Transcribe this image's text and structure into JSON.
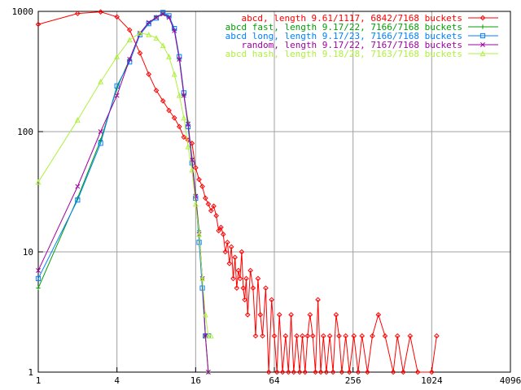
{
  "chart_data": {
    "type": "line",
    "title": "",
    "xlabel": "",
    "ylabel": "",
    "x_scale": "log2",
    "y_scale": "log10",
    "xlim": [
      1,
      4096
    ],
    "ylim": [
      1,
      1000
    ],
    "x_ticks": [
      "1",
      "4",
      "16",
      "64",
      "256",
      "1024",
      "4096"
    ],
    "y_ticks": [
      "1",
      "10",
      "100",
      "1000"
    ],
    "grid": true,
    "legend_position": "top-right",
    "series": [
      {
        "name": "abcd, length 9.61/1117, 6842/7168 buckets",
        "color": "#ff0000",
        "marker": "diamond",
        "points": [
          [
            1,
            780
          ],
          [
            2,
            960
          ],
          [
            3,
            990
          ],
          [
            4,
            900
          ],
          [
            5,
            700
          ],
          [
            6,
            450
          ],
          [
            7,
            300
          ],
          [
            8,
            220
          ],
          [
            9,
            180
          ],
          [
            10,
            150
          ],
          [
            11,
            130
          ],
          [
            12,
            110
          ],
          [
            13,
            90
          ],
          [
            14,
            85
          ],
          [
            15,
            80
          ],
          [
            16,
            50
          ],
          [
            17,
            40
          ],
          [
            18,
            35
          ],
          [
            19,
            28
          ],
          [
            20,
            25
          ],
          [
            21,
            22
          ],
          [
            22,
            24
          ],
          [
            23,
            20
          ],
          [
            24,
            15
          ],
          [
            25,
            16
          ],
          [
            26,
            14
          ],
          [
            27,
            10
          ],
          [
            28,
            12
          ],
          [
            29,
            8
          ],
          [
            30,
            11
          ],
          [
            31,
            6
          ],
          [
            32,
            9
          ],
          [
            33,
            5
          ],
          [
            34,
            7
          ],
          [
            35,
            6
          ],
          [
            36,
            10
          ],
          [
            37,
            5
          ],
          [
            38,
            4
          ],
          [
            39,
            6
          ],
          [
            40,
            3
          ],
          [
            42,
            7
          ],
          [
            44,
            5
          ],
          [
            46,
            2
          ],
          [
            48,
            6
          ],
          [
            50,
            3
          ],
          [
            52,
            2
          ],
          [
            55,
            5
          ],
          [
            58,
            1
          ],
          [
            61,
            4
          ],
          [
            64,
            2
          ],
          [
            67,
            1
          ],
          [
            70,
            3
          ],
          [
            74,
            1
          ],
          [
            78,
            2
          ],
          [
            82,
            1
          ],
          [
            86,
            3
          ],
          [
            90,
            1
          ],
          [
            95,
            2
          ],
          [
            100,
            1
          ],
          [
            105,
            2
          ],
          [
            110,
            1
          ],
          [
            115,
            2
          ],
          [
            120,
            3
          ],
          [
            126,
            2
          ],
          [
            132,
            1
          ],
          [
            138,
            4
          ],
          [
            145,
            1
          ],
          [
            152,
            2
          ],
          [
            160,
            1
          ],
          [
            170,
            2
          ],
          [
            180,
            1
          ],
          [
            190,
            3
          ],
          [
            200,
            2
          ],
          [
            210,
            1
          ],
          [
            225,
            2
          ],
          [
            240,
            1
          ],
          [
            260,
            2
          ],
          [
            280,
            1
          ],
          [
            300,
            2
          ],
          [
            330,
            1
          ],
          [
            360,
            2
          ],
          [
            400,
            3
          ],
          [
            450,
            2
          ],
          [
            520,
            1
          ],
          [
            560,
            2
          ],
          [
            620,
            1
          ],
          [
            700,
            2
          ],
          [
            800,
            1
          ],
          [
            1024,
            1
          ],
          [
            1117,
            2
          ]
        ]
      },
      {
        "name": "abcd fast, length 9.17/22, 7166/7168 buckets",
        "color": "#00a000",
        "marker": "plus",
        "points": [
          [
            1,
            5
          ],
          [
            2,
            28
          ],
          [
            3,
            85
          ],
          [
            4,
            230
          ],
          [
            5,
            400
          ],
          [
            6,
            650
          ],
          [
            7,
            800
          ],
          [
            8,
            900
          ],
          [
            9,
            960
          ],
          [
            10,
            900
          ],
          [
            11,
            700
          ],
          [
            12,
            400
          ],
          [
            13,
            200
          ],
          [
            14,
            120
          ],
          [
            15,
            60
          ],
          [
            16,
            30
          ],
          [
            17,
            15
          ],
          [
            18,
            6
          ],
          [
            19,
            2
          ],
          [
            20,
            1
          ]
        ]
      },
      {
        "name": "abcd long, length 9.17/23, 7166/7168 buckets",
        "color": "#0080ff",
        "marker": "square",
        "points": [
          [
            1,
            6
          ],
          [
            2,
            27
          ],
          [
            3,
            80
          ],
          [
            4,
            240
          ],
          [
            5,
            380
          ],
          [
            6,
            640
          ],
          [
            7,
            790
          ],
          [
            8,
            880
          ],
          [
            9,
            980
          ],
          [
            10,
            920
          ],
          [
            11,
            720
          ],
          [
            12,
            420
          ],
          [
            13,
            210
          ],
          [
            14,
            110
          ],
          [
            15,
            55
          ],
          [
            16,
            28
          ],
          [
            17,
            12
          ],
          [
            18,
            5
          ],
          [
            19,
            2
          ],
          [
            20,
            2
          ]
        ]
      },
      {
        "name": "random, length 9.17/22, 7167/7168 buckets",
        "color": "#a000a0",
        "marker": "x",
        "points": [
          [
            1,
            7
          ],
          [
            2,
            35
          ],
          [
            3,
            100
          ],
          [
            4,
            200
          ],
          [
            5,
            400
          ],
          [
            6,
            660
          ],
          [
            7,
            810
          ],
          [
            8,
            890
          ],
          [
            9,
            950
          ],
          [
            10,
            890
          ],
          [
            11,
            690
          ],
          [
            12,
            400
          ],
          [
            13,
            200
          ],
          [
            14,
            115
          ],
          [
            15,
            58
          ],
          [
            16,
            29
          ],
          [
            17,
            14
          ],
          [
            18,
            6
          ],
          [
            19,
            2
          ],
          [
            20,
            1
          ]
        ]
      },
      {
        "name": "abcd hash, length 9.18/28, 7163/7168 buckets",
        "color": "#b0f040",
        "marker": "triangle",
        "points": [
          [
            1,
            38
          ],
          [
            2,
            125
          ],
          [
            3,
            260
          ],
          [
            4,
            420
          ],
          [
            5,
            580
          ],
          [
            6,
            660
          ],
          [
            7,
            640
          ],
          [
            8,
            600
          ],
          [
            9,
            520
          ],
          [
            10,
            420
          ],
          [
            11,
            300
          ],
          [
            12,
            200
          ],
          [
            13,
            130
          ],
          [
            14,
            75
          ],
          [
            15,
            48
          ],
          [
            16,
            25
          ],
          [
            17,
            14
          ],
          [
            18,
            6
          ],
          [
            19,
            3
          ],
          [
            20,
            2
          ],
          [
            21,
            2
          ]
        ]
      }
    ]
  }
}
